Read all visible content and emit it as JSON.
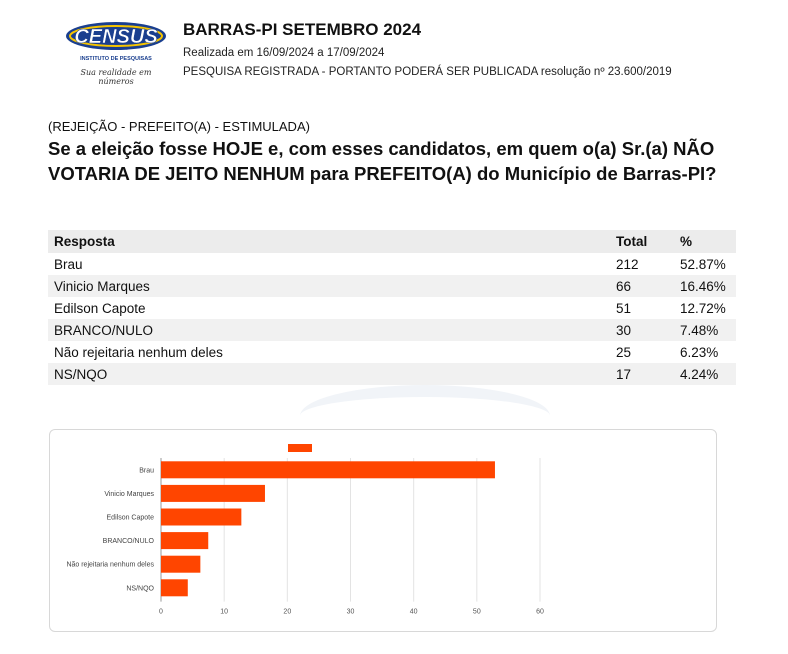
{
  "header": {
    "logo_text": "CENSUS",
    "logo_subtext": "INSTITUTO DE PESQUISAS",
    "logo_slogan": "Sua realidade em números",
    "title": "BARRAS-PI SETEMBRO 2024",
    "dates": "Realizada em 16/09/2024 a 17/09/2024",
    "registration": "PESQUISA REGISTRADA - PORTANTO PODERÁ SER PUBLICADA resolução nº 23.600/2019"
  },
  "question": {
    "tag": "(REJEIÇÃO - PREFEITO(A) - ESTIMULADA)",
    "text": "Se a eleição fosse HOJE e, com esses candidatos, em quem o(a) Sr.(a) NÃO VOTARIA DE JEITO NENHUM para PREFEITO(A) do Município de Barras-PI?"
  },
  "table": {
    "headers": [
      "Resposta",
      "Total",
      "%"
    ],
    "rows": [
      [
        "Brau",
        "212",
        "52.87%"
      ],
      [
        "Vinicio Marques",
        "66",
        "16.46%"
      ],
      [
        "Edilson Capote",
        "51",
        "12.72%"
      ],
      [
        "BRANCO/NULO",
        "30",
        "7.48%"
      ],
      [
        "Não rejeitaria nenhum deles",
        "25",
        "6.23%"
      ],
      [
        "NS/NQO",
        "17",
        "4.24%"
      ]
    ]
  },
  "chart_data": {
    "type": "bar",
    "orientation": "horizontal",
    "categories": [
      "Brau",
      "Vinicio Marques",
      "Edilson Capote",
      "BRANCO/NULO",
      "Não rejeitaria nenhum deles",
      "NS/NQO"
    ],
    "values": [
      52.87,
      16.46,
      12.72,
      7.48,
      6.23,
      4.24
    ],
    "xlim": [
      0,
      60
    ],
    "xticks": [
      0,
      10,
      20,
      30,
      40,
      50,
      60
    ],
    "grid": true,
    "legend": "top",
    "bar_color": "#ff4500"
  }
}
